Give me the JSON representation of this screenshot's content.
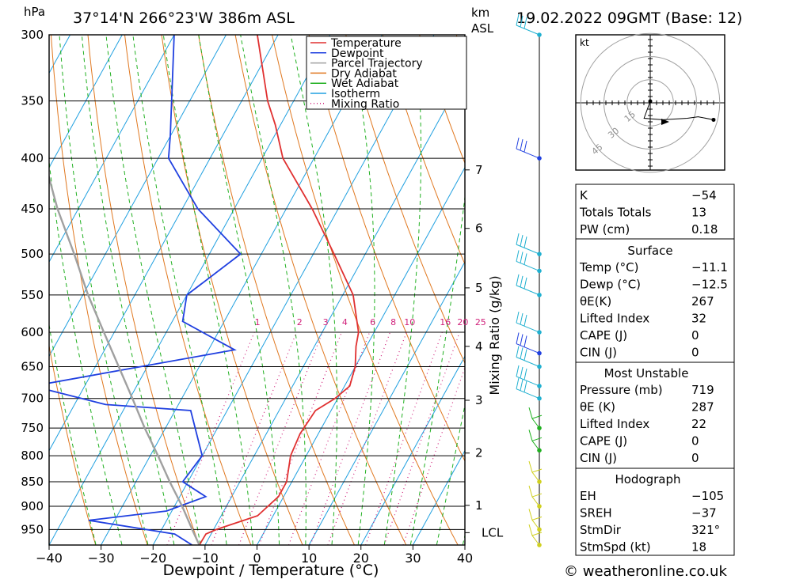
{
  "header": {
    "unit_left": "hPa",
    "location": "37°14'N  266°23'W  386m  ASL",
    "km_label": "km",
    "asl_label": "ASL",
    "datetime": "19.02.2022  09GMT  (Base: 12)"
  },
  "chart_data": {
    "type": "line",
    "title": "37°14'N  266°23'W  386m  ASL",
    "xlabel": "Dewpoint / Temperature (°C)",
    "ylabel": "hPa",
    "xlim": [
      -40,
      40
    ],
    "ylim": [
      985,
      300
    ],
    "y_scale": "log",
    "skew": "skew-T",
    "grid": true,
    "legend_position": "top-right",
    "x_ticks": [
      -40,
      -30,
      -20,
      -10,
      0,
      10,
      20,
      30,
      40
    ],
    "x_tick_labels": [
      "−40",
      "−30",
      "−20",
      "−10",
      "0",
      "10",
      "20",
      "30",
      "40"
    ],
    "pressure_levels": [
      300,
      350,
      400,
      450,
      500,
      550,
      600,
      650,
      700,
      750,
      800,
      850,
      900,
      950
    ],
    "km_ticks": [
      {
        "label": "7",
        "p": 411
      },
      {
        "label": "6",
        "p": 471
      },
      {
        "label": "5",
        "p": 541
      },
      {
        "label": "4",
        "p": 620
      },
      {
        "label": "3",
        "p": 703
      },
      {
        "label": "2",
        "p": 795
      },
      {
        "label": "1",
        "p": 898
      },
      {
        "label": "LCL",
        "p": 957
      }
    ],
    "mixing_ratio_label": "Mixing Ratio (g/kg)",
    "mixing_ratio_values": [
      "1",
      "2",
      "3",
      "4",
      "6",
      "8",
      "10",
      "16",
      "20",
      "25"
    ],
    "legend": [
      "Temperature",
      "Dewpoint",
      "Parcel Trajectory",
      "Dry Adiabat",
      "Wet Adiabat",
      "Isotherm",
      "Mixing Ratio"
    ],
    "series": [
      {
        "name": "Temperature",
        "color": "#e03030",
        "points": [
          [
            985,
            -11.1
          ],
          [
            960,
            -11
          ],
          [
            950,
            -9.5
          ],
          [
            920,
            -3
          ],
          [
            880,
            -1
          ],
          [
            850,
            -1
          ],
          [
            800,
            -3
          ],
          [
            760,
            -3.5
          ],
          [
            720,
            -3
          ],
          [
            700,
            -0.5
          ],
          [
            680,
            1
          ],
          [
            650,
            0
          ],
          [
            620,
            -2
          ],
          [
            600,
            -3
          ],
          [
            550,
            -8
          ],
          [
            500,
            -16
          ],
          [
            450,
            -25
          ],
          [
            400,
            -36
          ],
          [
            370,
            -41
          ],
          [
            350,
            -45
          ],
          [
            300,
            -54
          ]
        ]
      },
      {
        "name": "Dewpoint",
        "color": "#2040e0",
        "points": [
          [
            985,
            -12.5
          ],
          [
            960,
            -17
          ],
          [
            930,
            -35
          ],
          [
            910,
            -21
          ],
          [
            880,
            -15
          ],
          [
            850,
            -21
          ],
          [
            800,
            -20
          ],
          [
            720,
            -27
          ],
          [
            710,
            -44
          ],
          [
            680,
            -60
          ],
          [
            625,
            -25
          ],
          [
            585,
            -38
          ],
          [
            550,
            -40
          ],
          [
            500,
            -34
          ],
          [
            450,
            -47
          ],
          [
            400,
            -58
          ],
          [
            380,
            -60
          ],
          [
            300,
            -70
          ]
        ]
      },
      {
        "name": "Parcel Trajectory",
        "color": "#a0a0a0",
        "points": [
          [
            985,
            -11.1
          ],
          [
            957,
            -13.5
          ],
          [
            900,
            -18.5
          ],
          [
            850,
            -23.5
          ],
          [
            800,
            -28.5
          ],
          [
            750,
            -34
          ],
          [
            700,
            -39.5
          ],
          [
            650,
            -45.5
          ],
          [
            600,
            -52
          ],
          [
            550,
            -59
          ],
          [
            500,
            -66
          ],
          [
            450,
            -74
          ],
          [
            400,
            -82
          ],
          [
            385,
            -84
          ]
        ]
      }
    ],
    "wind_levels_hpa": [
      300,
      400,
      500,
      520,
      550,
      600,
      630,
      650,
      680,
      700,
      750,
      790,
      850,
      900,
      950,
      985
    ]
  },
  "hodograph": {
    "unit": "kt",
    "ring_labels": [
      "15",
      "30",
      "45"
    ],
    "points_kt": [
      [
        0,
        1
      ],
      [
        -4,
        -10
      ],
      [
        8,
        -11
      ],
      [
        24,
        -10
      ],
      [
        31,
        -9
      ],
      [
        41,
        -11
      ]
    ],
    "color": "#000000",
    "ring_color": "#a0a0a0"
  },
  "indices": {
    "general": [
      {
        "label": "K",
        "value": "−54"
      },
      {
        "label": "Totals Totals",
        "value": "13"
      },
      {
        "label": "PW (cm)",
        "value": "0.18"
      }
    ],
    "surface_title": "Surface",
    "surface": [
      {
        "label": "Temp (°C)",
        "value": "−11.1"
      },
      {
        "label": "Dewp (°C)",
        "value": "−12.5"
      },
      {
        "label": "θE(K)",
        "value": "267"
      },
      {
        "label": "Lifted Index",
        "value": "32"
      },
      {
        "label": "CAPE (J)",
        "value": "0"
      },
      {
        "label": "CIN (J)",
        "value": "0"
      }
    ],
    "mu_title": "Most Unstable",
    "mu": [
      {
        "label": "Pressure (mb)",
        "value": "719"
      },
      {
        "label": "θE (K)",
        "value": "287"
      },
      {
        "label": "Lifted Index",
        "value": "22"
      },
      {
        "label": "CAPE (J)",
        "value": "0"
      },
      {
        "label": "CIN (J)",
        "value": "0"
      }
    ],
    "hodo_title": "Hodograph",
    "hodo": [
      {
        "label": "EH",
        "value": "−105"
      },
      {
        "label": "SREH",
        "value": "−37"
      },
      {
        "label": "StmDir",
        "value": "321°"
      },
      {
        "label": "StmSpd (kt)",
        "value": "18"
      }
    ]
  },
  "footer": {
    "copyright": "© weatheronline.co.uk"
  },
  "colors": {
    "temperature": "#e03030",
    "dewpoint": "#2040e0",
    "parcel": "#a0a0a0",
    "dry_adiabat": "#e07820",
    "wet_adiabat": "#20b020",
    "isotherm": "#20a0e0",
    "mixing_ratio": "#d0207a",
    "wind_cyan": "#20b0d0",
    "wind_blue": "#2040e0",
    "wind_green": "#20b020",
    "wind_yellow": "#d0d020"
  }
}
